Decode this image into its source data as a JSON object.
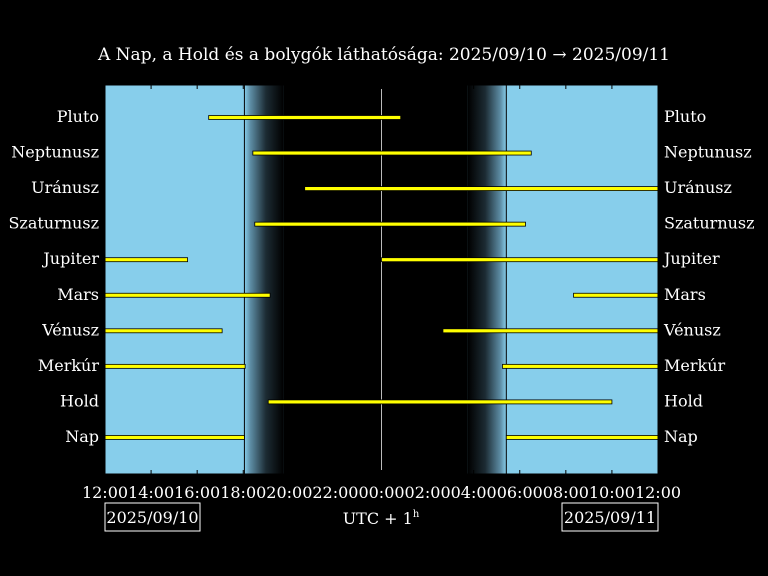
{
  "chart_data": {
    "type": "timeline",
    "title": "A Nap, a Hold és a bolygók láthatósága: 2025/09/10 → 2025/09/11",
    "x_unit": "hours since 12:00 (UTC+1)",
    "xlim": [
      0,
      24
    ],
    "x_ticks": [
      "12:00",
      "14:00",
      "16:00",
      "18:00",
      "20:00",
      "22:00",
      "00:00",
      "02:00",
      "04:00",
      "06:00",
      "08:00",
      "10:00",
      "12:00"
    ],
    "start_date": "2025/09/10",
    "end_date": "2025/09/11",
    "timezone_label": "UTC + 1",
    "timezone_sup": "h",
    "twilight": {
      "sunset": "18:03",
      "dark_begin": "19:45",
      "dark_end": "03:45",
      "sunrise": "05:25"
    },
    "midnight_line": "00:00",
    "rows": [
      {
        "name": "Pluto",
        "intervals": [
          [
            "16:30",
            "00:50"
          ]
        ]
      },
      {
        "name": "Neptunusz",
        "intervals": [
          [
            "18:25",
            "06:30"
          ]
        ]
      },
      {
        "name": "Uránusz",
        "intervals": [
          [
            "20:40",
            "12:00"
          ]
        ]
      },
      {
        "name": "Szaturnusz",
        "intervals": [
          [
            "18:30",
            "06:15"
          ]
        ]
      },
      {
        "name": "Jupiter",
        "intervals": [
          [
            "12:00",
            "15:35"
          ],
          [
            "00:00",
            "12:00"
          ]
        ]
      },
      {
        "name": "Mars",
        "intervals": [
          [
            "12:00",
            "19:10"
          ],
          [
            "08:20",
            "12:00"
          ]
        ]
      },
      {
        "name": "Vénusz",
        "intervals": [
          [
            "12:00",
            "17:05"
          ],
          [
            "02:40",
            "12:00"
          ]
        ]
      },
      {
        "name": "Merkúr",
        "intervals": [
          [
            "12:00",
            "18:05"
          ],
          [
            "05:15",
            "12:00"
          ]
        ]
      },
      {
        "name": "Hold",
        "intervals": [
          [
            "19:05",
            "10:00"
          ]
        ]
      },
      {
        "name": "Nap",
        "intervals": [
          [
            "12:00",
            "18:03"
          ],
          [
            "05:25",
            "12:00"
          ]
        ]
      }
    ],
    "colors": {
      "day": "#87ceeb",
      "night": "#000000",
      "bar": "#ffff00",
      "bar_edge": "#000000",
      "text": "#ffffff"
    }
  }
}
